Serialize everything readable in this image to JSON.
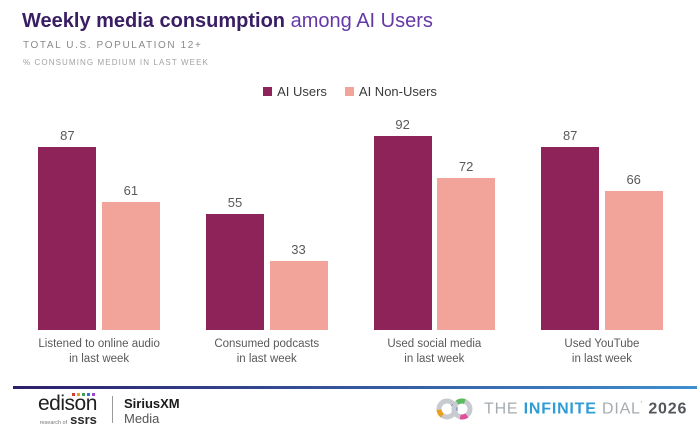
{
  "title": {
    "bold": "Weekly media consumption",
    "regular": " among AI Users"
  },
  "subtitle": "TOTAL U.S. POPULATION 12+",
  "note": "% CONSUMING MEDIUM IN LAST WEEK",
  "colors": {
    "ai_users": "#8E2359",
    "ai_non_users": "#F2A49B",
    "title_dark": "#3A1E63",
    "title_purple": "#6438A6",
    "infinite_blue": "#2F9CD6"
  },
  "legend": [
    {
      "label": "AI Users",
      "color": "#8E2359"
    },
    {
      "label": "AI Non-Users",
      "color": "#F2A49B"
    }
  ],
  "chart_data": {
    "type": "bar",
    "title": "Weekly media consumption among AI Users",
    "subtitle": "Total U.S. Population 12+, % consuming medium in last week",
    "categories": [
      "Listened to online audio in last week",
      "Consumed podcasts in last week",
      "Used social media in last week",
      "Used YouTube in last week"
    ],
    "category_lines": [
      [
        "Listened to online audio",
        "in last week"
      ],
      [
        "Consumed podcasts",
        "in last week"
      ],
      [
        "Used social media",
        "in last week"
      ],
      [
        "Used YouTube",
        "in last week"
      ]
    ],
    "series": [
      {
        "name": "AI Users",
        "color": "#8E2359",
        "values": [
          87,
          55,
          92,
          87
        ]
      },
      {
        "name": "AI Non-Users",
        "color": "#F2A49B",
        "values": [
          61,
          33,
          72,
          66
        ]
      }
    ],
    "ylim": [
      0,
      100
    ],
    "value_labels": true,
    "grid": false,
    "legend_position": "top"
  },
  "footer": {
    "edison": {
      "name": "edison",
      "sub_small": "research of",
      "sub_bold": "ssrs",
      "dot_colors": [
        "#D43B3B",
        "#E8A021",
        "#3BA05A",
        "#3B6FD4",
        "#9B4BC9"
      ]
    },
    "siriusxm": {
      "line1": "SiriusXM",
      "line2": "Media"
    },
    "infinite_dial": {
      "the": "THE",
      "infinite": "INFINITE",
      "dial": "DIAL",
      "tick": "'",
      "year": "2026"
    }
  }
}
